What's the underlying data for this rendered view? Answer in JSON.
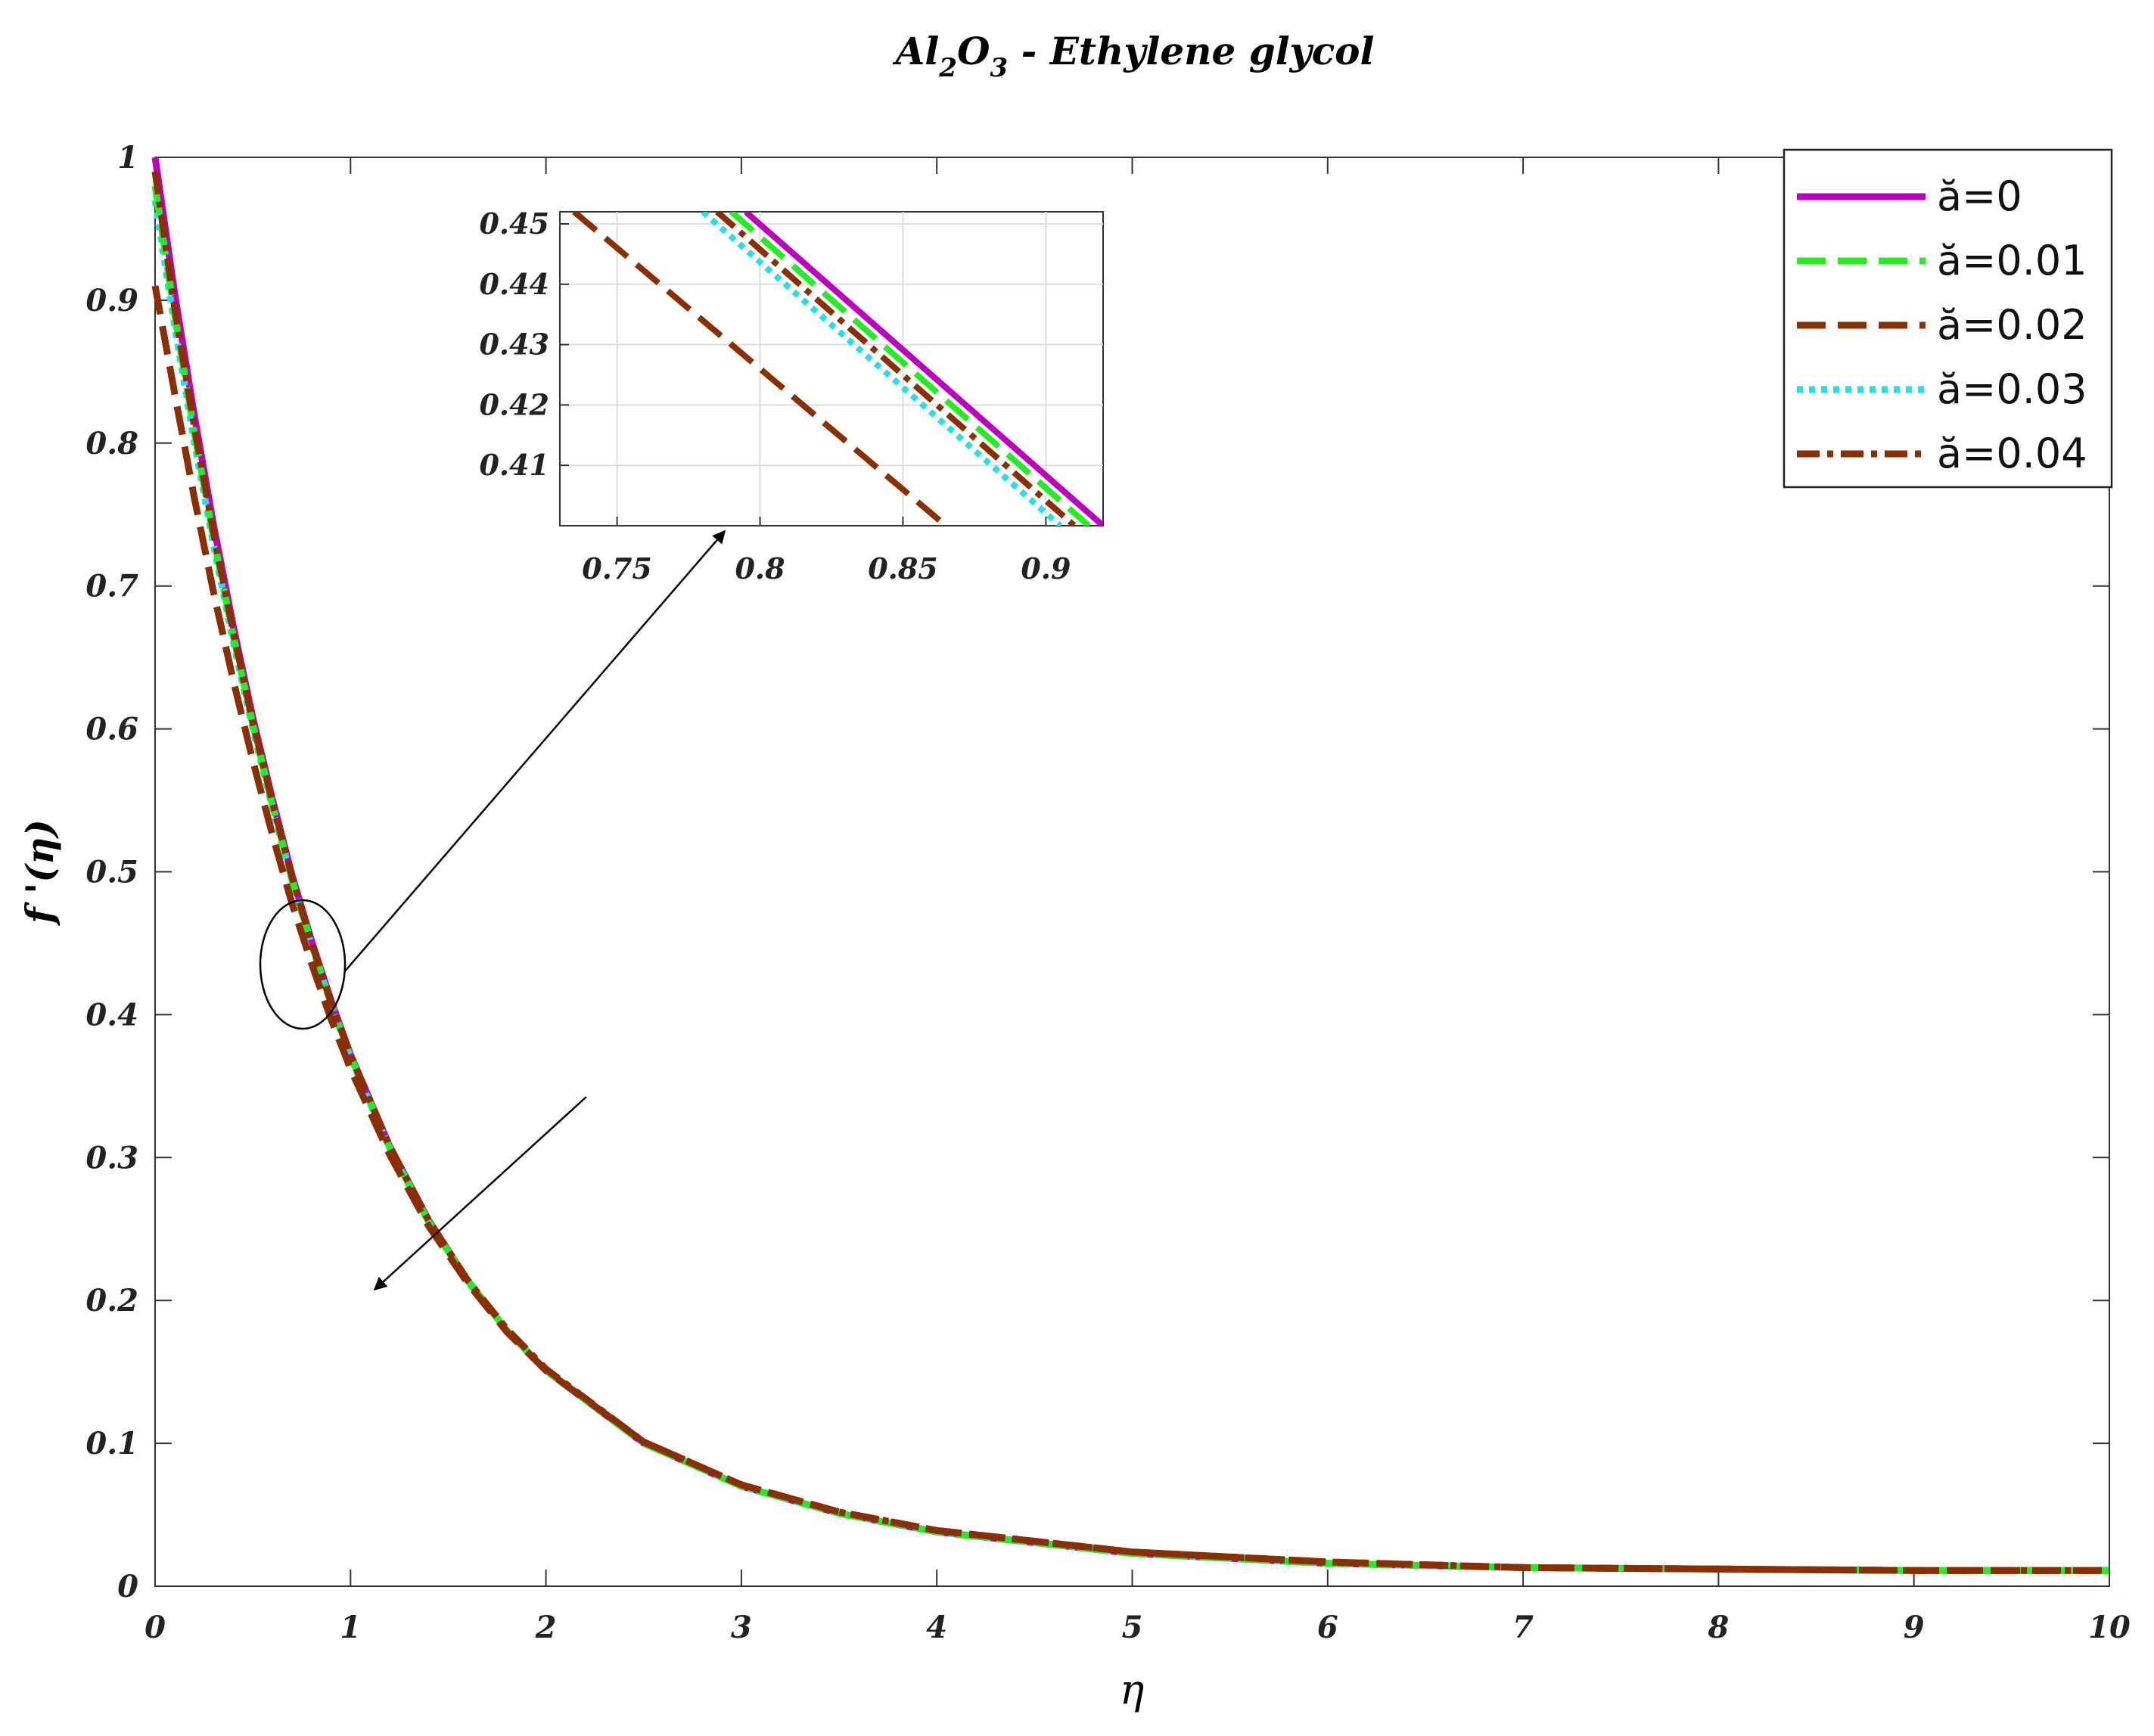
{
  "chart_data": {
    "type": "line",
    "title": {
      "main": "Al",
      "sub1": "2",
      "mid": "O",
      "sub2": "3",
      "tail": " - Ethylene glycol"
    },
    "xlabel": "η",
    "ylabel": "f '(η)",
    "xlim": [
      0,
      10
    ],
    "ylim": [
      0,
      1
    ],
    "xticks": [
      "0",
      "1",
      "2",
      "3",
      "4",
      "5",
      "6",
      "7",
      "8",
      "9",
      "10"
    ],
    "yticks": [
      "0",
      "0.1",
      "0.2",
      "0.3",
      "0.4",
      "0.5",
      "0.6",
      "0.7",
      "0.8",
      "0.9",
      "1"
    ],
    "grid": false,
    "legend_position": "top-right",
    "x": [
      0,
      0.1,
      0.2,
      0.3,
      0.4,
      0.5,
      0.6,
      0.7,
      0.8,
      0.9,
      1.0,
      1.2,
      1.4,
      1.6,
      1.8,
      2.0,
      2.5,
      3.0,
      3.5,
      4.0,
      5.0,
      6.0,
      7.0,
      8.0,
      9.0,
      10.0
    ],
    "series": [
      {
        "name": "ă=0",
        "color": "#c000c0",
        "dash": "solid",
        "values": [
          1.0,
          0.905,
          0.82,
          0.742,
          0.672,
          0.608,
          0.551,
          0.498,
          0.452,
          0.41,
          0.372,
          0.308,
          0.256,
          0.214,
          0.179,
          0.151,
          0.1,
          0.07,
          0.051,
          0.038,
          0.023,
          0.016,
          0.013,
          0.012,
          0.011,
          0.011
        ]
      },
      {
        "name": "ă=0.01",
        "color": "#22ee22",
        "dash": "dashed",
        "values": [
          0.98,
          0.89,
          0.808,
          0.733,
          0.665,
          0.603,
          0.547,
          0.495,
          0.45,
          0.408,
          0.371,
          0.307,
          0.255,
          0.214,
          0.179,
          0.151,
          0.1,
          0.07,
          0.051,
          0.038,
          0.023,
          0.016,
          0.013,
          0.012,
          0.011,
          0.011
        ]
      },
      {
        "name": "ă=0.02",
        "color": "#8b2f00",
        "dash": "dashed",
        "values": [
          0.91,
          0.835,
          0.762,
          0.695,
          0.634,
          0.578,
          0.526,
          0.478,
          0.436,
          0.397,
          0.362,
          0.302,
          0.252,
          0.212,
          0.178,
          0.151,
          0.101,
          0.071,
          0.052,
          0.039,
          0.024,
          0.017,
          0.013,
          0.012,
          0.011,
          0.011
        ]
      },
      {
        "name": "ă=0.03",
        "color": "#1ee0ee",
        "dash": "dotted",
        "values": [
          0.97,
          0.882,
          0.801,
          0.728,
          0.661,
          0.6,
          0.545,
          0.494,
          0.449,
          0.407,
          0.37,
          0.306,
          0.255,
          0.213,
          0.179,
          0.151,
          0.1,
          0.07,
          0.051,
          0.038,
          0.023,
          0.016,
          0.013,
          0.012,
          0.011,
          0.011
        ]
      },
      {
        "name": "ă=0.04",
        "color": "#8b2f00",
        "dash": "dashdot",
        "values": [
          0.99,
          0.895,
          0.812,
          0.737,
          0.668,
          0.605,
          0.549,
          0.497,
          0.451,
          0.409,
          0.372,
          0.308,
          0.256,
          0.214,
          0.18,
          0.152,
          0.101,
          0.071,
          0.052,
          0.039,
          0.024,
          0.017,
          0.013,
          0.012,
          0.011,
          0.011
        ]
      }
    ],
    "inset": {
      "xlim": [
        0.73,
        0.92
      ],
      "ylim": [
        0.4,
        0.452
      ],
      "xticks": [
        "0.75",
        "0.8",
        "0.85",
        "0.9"
      ],
      "yticks": [
        "0.41",
        "0.42",
        "0.43",
        "0.44",
        "0.45"
      ],
      "grid": true,
      "lines": [
        {
          "series": 0,
          "x": [
            0.795,
            0.92
          ],
          "y": [
            0.452,
            0.4
          ]
        },
        {
          "series": 1,
          "x": [
            0.79,
            0.915
          ],
          "y": [
            0.452,
            0.4
          ]
        },
        {
          "series": 4,
          "x": [
            0.785,
            0.91
          ],
          "y": [
            0.452,
            0.4
          ]
        },
        {
          "series": 3,
          "x": [
            0.78,
            0.905
          ],
          "y": [
            0.452,
            0.4
          ]
        },
        {
          "series": 2,
          "x": [
            0.735,
            0.865
          ],
          "y": [
            0.452,
            0.4
          ]
        }
      ]
    }
  }
}
